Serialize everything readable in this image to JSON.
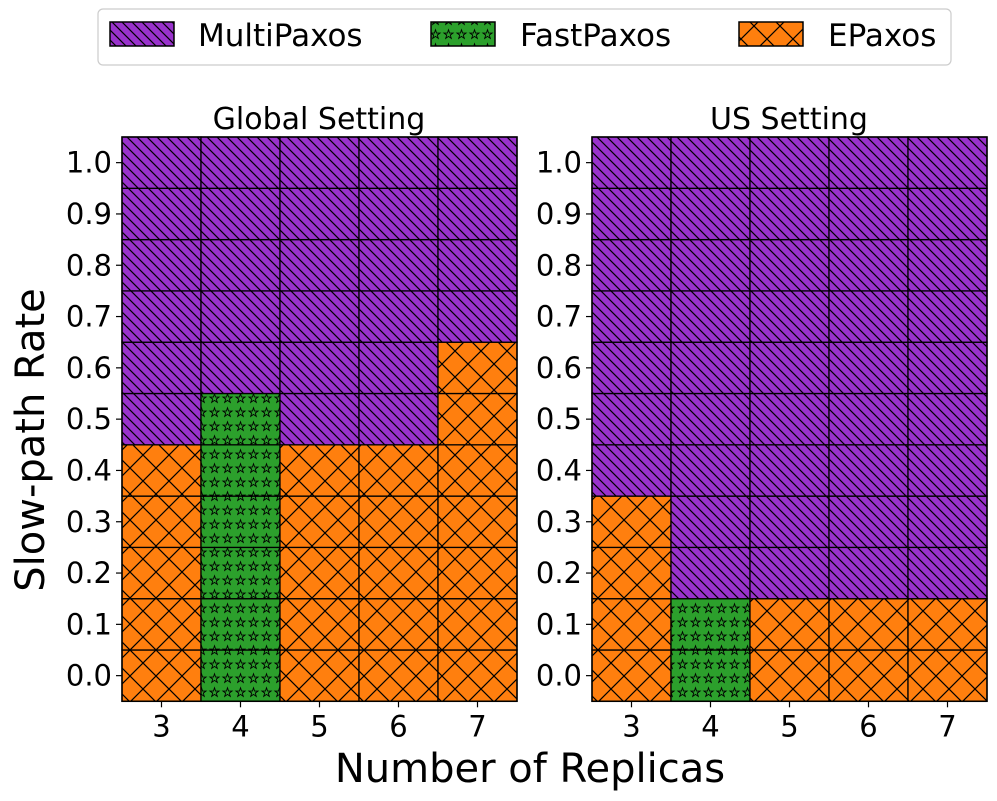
{
  "legend": {
    "entries": [
      {
        "name": "MultiPaxos",
        "color": "#9932CC",
        "hatch": "diagonal"
      },
      {
        "name": "FastPaxos",
        "color": "#2CA02C",
        "hatch": "stars"
      },
      {
        "name": "EPaxos",
        "color": "#FF7F0E",
        "hatch": "crosshatch"
      }
    ]
  },
  "figure": {
    "ylabel": "Slow-path Rate",
    "xlabel": "Number of Replicas"
  },
  "chart_data": [
    {
      "type": "heatmap",
      "title": "Global Setting",
      "x": [
        3,
        4,
        5,
        6,
        7
      ],
      "y": [
        0.0,
        0.1,
        0.2,
        0.3,
        0.4,
        0.5,
        0.6,
        0.7,
        0.8,
        0.9,
        1.0
      ],
      "yticks": [
        "0.0",
        "0.1",
        "0.2",
        "0.3",
        "0.4",
        "0.5",
        "0.6",
        "0.7",
        "0.8",
        "0.9",
        "1.0"
      ],
      "cells": [
        [
          "EPaxos",
          "FastPaxos",
          "EPaxos",
          "EPaxos",
          "EPaxos"
        ],
        [
          "EPaxos",
          "FastPaxos",
          "EPaxos",
          "EPaxos",
          "EPaxos"
        ],
        [
          "EPaxos",
          "FastPaxos",
          "EPaxos",
          "EPaxos",
          "EPaxos"
        ],
        [
          "EPaxos",
          "FastPaxos",
          "EPaxos",
          "EPaxos",
          "EPaxos"
        ],
        [
          "EPaxos",
          "FastPaxos",
          "EPaxos",
          "EPaxos",
          "EPaxos"
        ],
        [
          "MultiPaxos",
          "FastPaxos",
          "MultiPaxos",
          "MultiPaxos",
          "EPaxos"
        ],
        [
          "MultiPaxos",
          "MultiPaxos",
          "MultiPaxos",
          "MultiPaxos",
          "EPaxos"
        ],
        [
          "MultiPaxos",
          "MultiPaxos",
          "MultiPaxos",
          "MultiPaxos",
          "MultiPaxos"
        ],
        [
          "MultiPaxos",
          "MultiPaxos",
          "MultiPaxos",
          "MultiPaxos",
          "MultiPaxos"
        ],
        [
          "MultiPaxos",
          "MultiPaxos",
          "MultiPaxos",
          "MultiPaxos",
          "MultiPaxos"
        ],
        [
          "MultiPaxos",
          "MultiPaxos",
          "MultiPaxos",
          "MultiPaxos",
          "MultiPaxos"
        ]
      ]
    },
    {
      "type": "heatmap",
      "title": "US Setting",
      "x": [
        3,
        4,
        5,
        6,
        7
      ],
      "y": [
        0.0,
        0.1,
        0.2,
        0.3,
        0.4,
        0.5,
        0.6,
        0.7,
        0.8,
        0.9,
        1.0
      ],
      "yticks": [
        "0.0",
        "0.1",
        "0.2",
        "0.3",
        "0.4",
        "0.5",
        "0.6",
        "0.7",
        "0.8",
        "0.9",
        "1.0"
      ],
      "cells": [
        [
          "EPaxos",
          "FastPaxos",
          "EPaxos",
          "EPaxos",
          "EPaxos"
        ],
        [
          "EPaxos",
          "FastPaxos",
          "EPaxos",
          "EPaxos",
          "EPaxos"
        ],
        [
          "EPaxos",
          "MultiPaxos",
          "MultiPaxos",
          "MultiPaxos",
          "MultiPaxos"
        ],
        [
          "EPaxos",
          "MultiPaxos",
          "MultiPaxos",
          "MultiPaxos",
          "MultiPaxos"
        ],
        [
          "MultiPaxos",
          "MultiPaxos",
          "MultiPaxos",
          "MultiPaxos",
          "MultiPaxos"
        ],
        [
          "MultiPaxos",
          "MultiPaxos",
          "MultiPaxos",
          "MultiPaxos",
          "MultiPaxos"
        ],
        [
          "MultiPaxos",
          "MultiPaxos",
          "MultiPaxos",
          "MultiPaxos",
          "MultiPaxos"
        ],
        [
          "MultiPaxos",
          "MultiPaxos",
          "MultiPaxos",
          "MultiPaxos",
          "MultiPaxos"
        ],
        [
          "MultiPaxos",
          "MultiPaxos",
          "MultiPaxos",
          "MultiPaxos",
          "MultiPaxos"
        ],
        [
          "MultiPaxos",
          "MultiPaxos",
          "MultiPaxos",
          "MultiPaxos",
          "MultiPaxos"
        ],
        [
          "MultiPaxos",
          "MultiPaxos",
          "MultiPaxos",
          "MultiPaxos",
          "MultiPaxos"
        ]
      ]
    }
  ]
}
